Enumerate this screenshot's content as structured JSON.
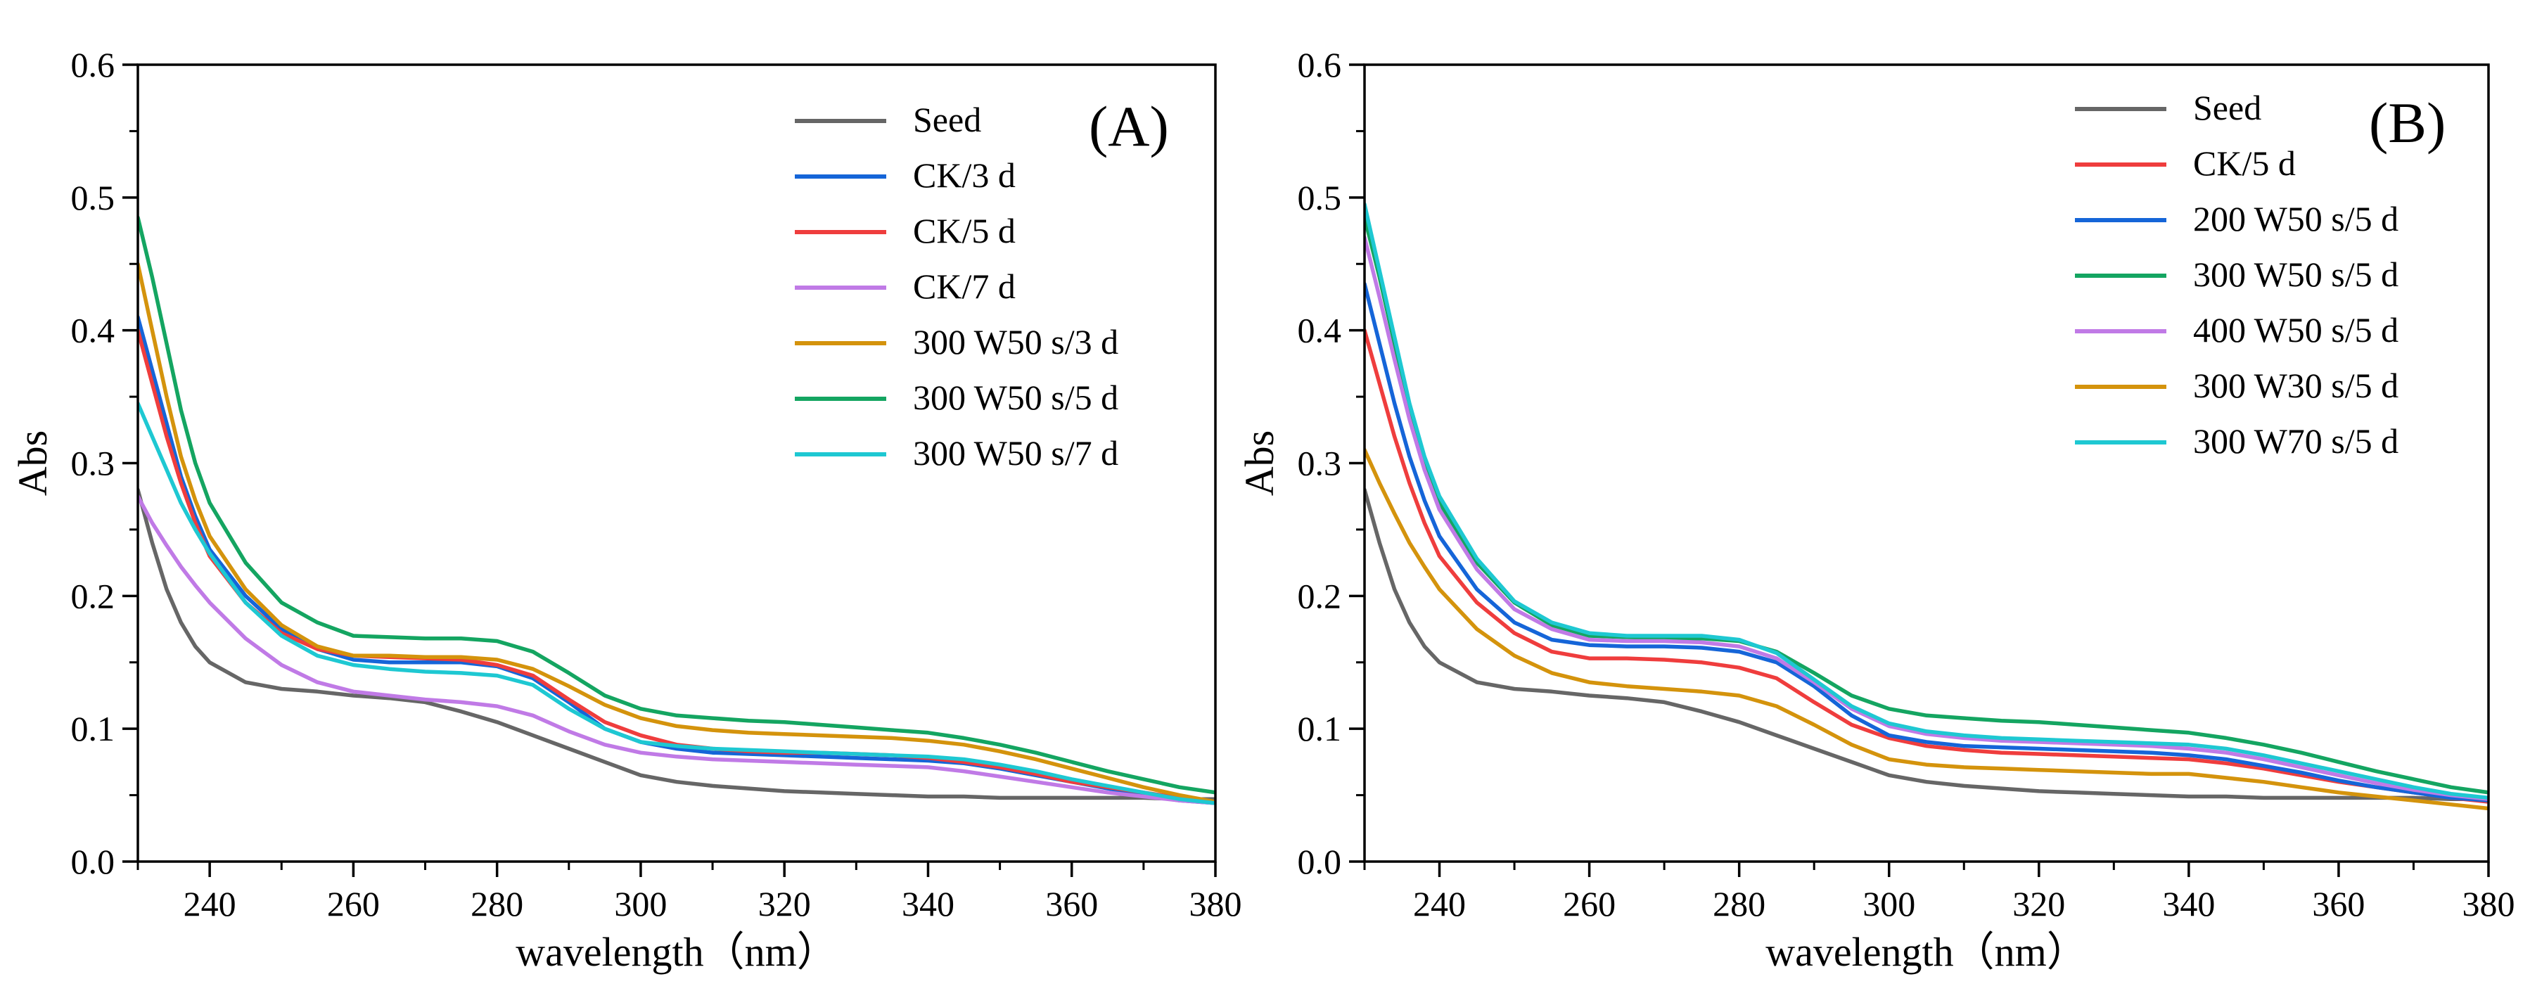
{
  "figure": {
    "panels": [
      "A",
      "B"
    ]
  },
  "chart_data": [
    {
      "type": "line",
      "panel_label": "(A)",
      "xlabel": "wavelength（nm）",
      "ylabel": "Abs",
      "xlim": [
        230,
        380
      ],
      "ylim": [
        0.0,
        0.6
      ],
      "xticks": [
        240,
        260,
        280,
        300,
        320,
        340,
        360,
        380
      ],
      "yticks": [
        0.0,
        0.1,
        0.2,
        0.3,
        0.4,
        0.5,
        0.6
      ],
      "xtick_labels": [
        "240",
        "260",
        "280",
        "300",
        "320",
        "340",
        "360",
        "380"
      ],
      "ytick_labels": [
        "0.0",
        "0.1",
        "0.2",
        "0.3",
        "0.4",
        "0.5",
        "0.6"
      ],
      "legend_position": "top-right",
      "x": [
        230,
        232,
        234,
        236,
        238,
        240,
        245,
        250,
        255,
        260,
        265,
        270,
        275,
        280,
        285,
        290,
        295,
        300,
        305,
        310,
        315,
        320,
        325,
        330,
        335,
        340,
        345,
        350,
        355,
        360,
        365,
        370,
        375,
        380
      ],
      "series": [
        {
          "name": "Seed",
          "color": "#666666",
          "values": [
            0.28,
            0.24,
            0.205,
            0.18,
            0.162,
            0.15,
            0.135,
            0.13,
            0.128,
            0.125,
            0.123,
            0.12,
            0.113,
            0.105,
            0.095,
            0.085,
            0.075,
            0.065,
            0.06,
            0.057,
            0.055,
            0.053,
            0.052,
            0.051,
            0.05,
            0.049,
            0.049,
            0.048,
            0.048,
            0.048,
            0.048,
            0.048,
            0.047,
            0.047
          ]
        },
        {
          "name": "CK/3 d",
          "color": "#1565d8",
          "values": [
            0.41,
            0.37,
            0.33,
            0.29,
            0.26,
            0.235,
            0.2,
            0.175,
            0.16,
            0.152,
            0.15,
            0.15,
            0.15,
            0.147,
            0.138,
            0.12,
            0.1,
            0.09,
            0.085,
            0.082,
            0.081,
            0.08,
            0.079,
            0.078,
            0.077,
            0.076,
            0.074,
            0.07,
            0.065,
            0.06,
            0.055,
            0.05,
            0.046,
            0.044
          ]
        },
        {
          "name": "CK/5 d",
          "color": "#ef3d3d",
          "values": [
            0.4,
            0.36,
            0.32,
            0.285,
            0.255,
            0.23,
            0.195,
            0.172,
            0.16,
            0.155,
            0.154,
            0.153,
            0.152,
            0.148,
            0.14,
            0.122,
            0.105,
            0.095,
            0.088,
            0.085,
            0.083,
            0.082,
            0.082,
            0.081,
            0.08,
            0.078,
            0.075,
            0.071,
            0.066,
            0.06,
            0.056,
            0.052,
            0.048,
            0.045
          ]
        },
        {
          "name": "CK/7 d",
          "color": "#c07ae6",
          "values": [
            0.275,
            0.255,
            0.238,
            0.222,
            0.208,
            0.195,
            0.168,
            0.148,
            0.135,
            0.128,
            0.125,
            0.122,
            0.12,
            0.117,
            0.11,
            0.098,
            0.088,
            0.082,
            0.079,
            0.077,
            0.076,
            0.075,
            0.074,
            0.073,
            0.072,
            0.071,
            0.068,
            0.064,
            0.06,
            0.056,
            0.052,
            0.049,
            0.046,
            0.044
          ]
        },
        {
          "name": "300 W50 s/3 d",
          "color": "#d4930c",
          "values": [
            0.45,
            0.4,
            0.35,
            0.305,
            0.272,
            0.245,
            0.205,
            0.178,
            0.162,
            0.155,
            0.155,
            0.154,
            0.154,
            0.152,
            0.145,
            0.132,
            0.118,
            0.108,
            0.102,
            0.099,
            0.097,
            0.096,
            0.095,
            0.094,
            0.093,
            0.091,
            0.088,
            0.083,
            0.077,
            0.07,
            0.063,
            0.056,
            0.05,
            0.045
          ]
        },
        {
          "name": "300 W50 s/5 d",
          "color": "#14a561",
          "values": [
            0.485,
            0.44,
            0.39,
            0.34,
            0.3,
            0.27,
            0.225,
            0.195,
            0.18,
            0.17,
            0.169,
            0.168,
            0.168,
            0.166,
            0.158,
            0.142,
            0.125,
            0.115,
            0.11,
            0.108,
            0.106,
            0.105,
            0.103,
            0.101,
            0.099,
            0.097,
            0.093,
            0.088,
            0.082,
            0.075,
            0.068,
            0.062,
            0.056,
            0.052
          ]
        },
        {
          "name": "300 W50 s/7 d",
          "color": "#1ec8d2",
          "values": [
            0.345,
            0.32,
            0.295,
            0.27,
            0.25,
            0.232,
            0.195,
            0.17,
            0.155,
            0.148,
            0.145,
            0.143,
            0.142,
            0.14,
            0.133,
            0.115,
            0.1,
            0.09,
            0.087,
            0.085,
            0.084,
            0.083,
            0.082,
            0.081,
            0.08,
            0.079,
            0.077,
            0.073,
            0.068,
            0.062,
            0.057,
            0.052,
            0.047,
            0.044
          ]
        }
      ]
    },
    {
      "type": "line",
      "panel_label": "(B)",
      "xlabel": "wavelength（nm）",
      "ylabel": "Abs",
      "xlim": [
        230,
        380
      ],
      "ylim": [
        0.0,
        0.6
      ],
      "xticks": [
        240,
        260,
        280,
        300,
        320,
        340,
        360,
        380
      ],
      "yticks": [
        0.0,
        0.1,
        0.2,
        0.3,
        0.4,
        0.5,
        0.6
      ],
      "xtick_labels": [
        "240",
        "260",
        "280",
        "300",
        "320",
        "340",
        "360",
        "380"
      ],
      "ytick_labels": [
        "0.0",
        "0.1",
        "0.2",
        "0.3",
        "0.4",
        "0.5",
        "0.6"
      ],
      "legend_position": "top-right",
      "x": [
        230,
        232,
        234,
        236,
        238,
        240,
        245,
        250,
        255,
        260,
        265,
        270,
        275,
        280,
        285,
        290,
        295,
        300,
        305,
        310,
        315,
        320,
        325,
        330,
        335,
        340,
        345,
        350,
        355,
        360,
        365,
        370,
        375,
        380
      ],
      "series": [
        {
          "name": "Seed",
          "color": "#666666",
          "values": [
            0.28,
            0.24,
            0.205,
            0.18,
            0.162,
            0.15,
            0.135,
            0.13,
            0.128,
            0.125,
            0.123,
            0.12,
            0.113,
            0.105,
            0.095,
            0.085,
            0.075,
            0.065,
            0.06,
            0.057,
            0.055,
            0.053,
            0.052,
            0.051,
            0.05,
            0.049,
            0.049,
            0.048,
            0.048,
            0.048,
            0.048,
            0.048,
            0.047,
            0.047
          ]
        },
        {
          "name": "CK/5 d",
          "color": "#ef3d3d",
          "values": [
            0.4,
            0.36,
            0.32,
            0.285,
            0.255,
            0.23,
            0.195,
            0.172,
            0.158,
            0.153,
            0.153,
            0.152,
            0.15,
            0.146,
            0.138,
            0.12,
            0.103,
            0.093,
            0.087,
            0.084,
            0.082,
            0.081,
            0.08,
            0.079,
            0.078,
            0.077,
            0.074,
            0.07,
            0.065,
            0.06,
            0.056,
            0.052,
            0.048,
            0.045
          ]
        },
        {
          "name": "200 W50 s/5 d",
          "color": "#1565d8",
          "values": [
            0.435,
            0.39,
            0.345,
            0.305,
            0.272,
            0.245,
            0.205,
            0.18,
            0.167,
            0.163,
            0.162,
            0.162,
            0.161,
            0.158,
            0.15,
            0.132,
            0.11,
            0.095,
            0.09,
            0.087,
            0.086,
            0.085,
            0.084,
            0.083,
            0.082,
            0.08,
            0.077,
            0.072,
            0.067,
            0.061,
            0.056,
            0.052,
            0.048,
            0.046
          ]
        },
        {
          "name": "300 W50 s/5 d",
          "color": "#14a561",
          "values": [
            0.485,
            0.44,
            0.39,
            0.34,
            0.3,
            0.27,
            0.225,
            0.195,
            0.178,
            0.17,
            0.169,
            0.168,
            0.168,
            0.166,
            0.158,
            0.142,
            0.125,
            0.115,
            0.11,
            0.108,
            0.106,
            0.105,
            0.103,
            0.101,
            0.099,
            0.097,
            0.093,
            0.088,
            0.082,
            0.075,
            0.068,
            0.062,
            0.056,
            0.052
          ]
        },
        {
          "name": "400 W50 s/5 d",
          "color": "#c07ae6",
          "values": [
            0.47,
            0.425,
            0.378,
            0.333,
            0.295,
            0.265,
            0.22,
            0.19,
            0.175,
            0.167,
            0.166,
            0.166,
            0.165,
            0.162,
            0.153,
            0.135,
            0.115,
            0.102,
            0.096,
            0.093,
            0.091,
            0.09,
            0.089,
            0.088,
            0.087,
            0.085,
            0.082,
            0.077,
            0.071,
            0.065,
            0.059,
            0.054,
            0.05,
            0.047
          ]
        },
        {
          "name": "300 W30 s/5 d",
          "color": "#d4930c",
          "values": [
            0.31,
            0.285,
            0.262,
            0.24,
            0.222,
            0.205,
            0.175,
            0.155,
            0.142,
            0.135,
            0.132,
            0.13,
            0.128,
            0.125,
            0.117,
            0.103,
            0.088,
            0.077,
            0.073,
            0.071,
            0.07,
            0.069,
            0.068,
            0.067,
            0.066,
            0.066,
            0.063,
            0.06,
            0.056,
            0.052,
            0.049,
            0.046,
            0.043,
            0.04
          ]
        },
        {
          "name": "300 W70 s/5 d",
          "color": "#1ec8d2",
          "values": [
            0.495,
            0.445,
            0.395,
            0.345,
            0.305,
            0.275,
            0.228,
            0.196,
            0.18,
            0.172,
            0.17,
            0.17,
            0.17,
            0.167,
            0.157,
            0.137,
            0.117,
            0.104,
            0.098,
            0.095,
            0.093,
            0.092,
            0.091,
            0.09,
            0.089,
            0.088,
            0.085,
            0.08,
            0.074,
            0.068,
            0.062,
            0.056,
            0.051,
            0.048
          ]
        }
      ]
    }
  ]
}
